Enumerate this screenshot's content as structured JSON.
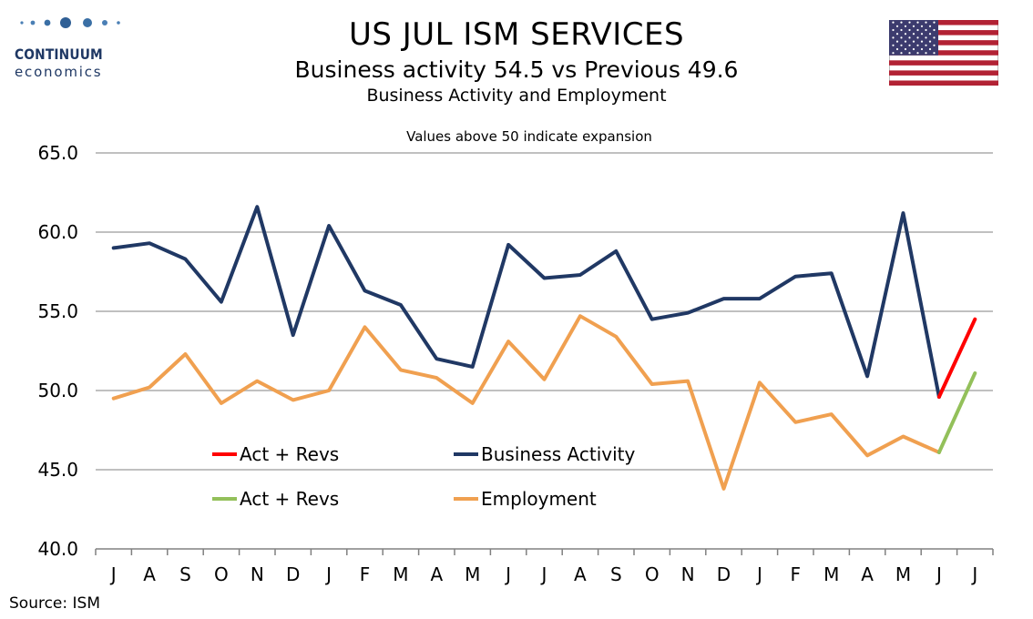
{
  "header": {
    "title": "US JUL ISM SERVICES",
    "subtitle": "Business activity 54.5 vs Previous 49.6",
    "subtitle2": "Business Activity and Employment"
  },
  "logo": {
    "name": "CONTINUUM",
    "sub": "economics",
    "color": "#1f3864"
  },
  "flag": {
    "icon": "us-flag-icon"
  },
  "source": "Source: ISM",
  "colors": {
    "business": "#203864",
    "employment": "#f0a050",
    "business_latest": "#ff0000",
    "employment_latest": "#93c05a",
    "grid": "#c0c0c0",
    "axis": "#808080"
  },
  "chart_data": {
    "type": "line",
    "annotation": "Values above 50 indicate expansion",
    "categories": [
      "J",
      "A",
      "S",
      "O",
      "N",
      "D",
      "J",
      "F",
      "M",
      "A",
      "M",
      "J",
      "J",
      "A",
      "S",
      "O",
      "N",
      "D",
      "J",
      "F",
      "M",
      "A",
      "M",
      "J",
      "J"
    ],
    "ylim": [
      40,
      65
    ],
    "y_ticks": [
      "40.0",
      "45.0",
      "50.0",
      "55.0",
      "60.0",
      "65.0"
    ],
    "grid": true,
    "legend_placement": "lower-left",
    "series": [
      {
        "name": "Business Activity",
        "values": [
          59.0,
          59.3,
          58.3,
          55.6,
          61.6,
          53.5,
          60.4,
          56.3,
          55.4,
          52.0,
          51.5,
          59.2,
          57.1,
          57.3,
          58.8,
          54.5,
          54.9,
          55.8,
          55.8,
          57.2,
          57.4,
          50.9,
          61.2,
          49.6,
          null
        ]
      },
      {
        "name": "Employment",
        "values": [
          49.5,
          50.2,
          52.3,
          49.2,
          50.6,
          49.4,
          50.0,
          54.0,
          51.3,
          50.8,
          49.2,
          53.1,
          50.7,
          54.7,
          53.4,
          50.4,
          50.6,
          43.8,
          50.5,
          48.0,
          48.5,
          45.9,
          47.1,
          46.1,
          null
        ]
      },
      {
        "name": "Act + Revs",
        "color_key": "business_latest",
        "values": [
          null,
          null,
          null,
          null,
          null,
          null,
          null,
          null,
          null,
          null,
          null,
          null,
          null,
          null,
          null,
          null,
          null,
          null,
          null,
          null,
          null,
          null,
          null,
          49.6,
          54.5
        ]
      },
      {
        "name": "Act + Revs",
        "color_key": "employment_latest",
        "values": [
          null,
          null,
          null,
          null,
          null,
          null,
          null,
          null,
          null,
          null,
          null,
          null,
          null,
          null,
          null,
          null,
          null,
          null,
          null,
          null,
          null,
          null,
          null,
          46.1,
          51.1
        ]
      }
    ],
    "legend": [
      {
        "label": "Act + Revs",
        "color_key": "business_latest"
      },
      {
        "label": "Business Activity",
        "color_key": "business"
      },
      {
        "label": "Act + Revs",
        "color_key": "employment_latest"
      },
      {
        "label": "Employment",
        "color_key": "employment"
      }
    ]
  }
}
